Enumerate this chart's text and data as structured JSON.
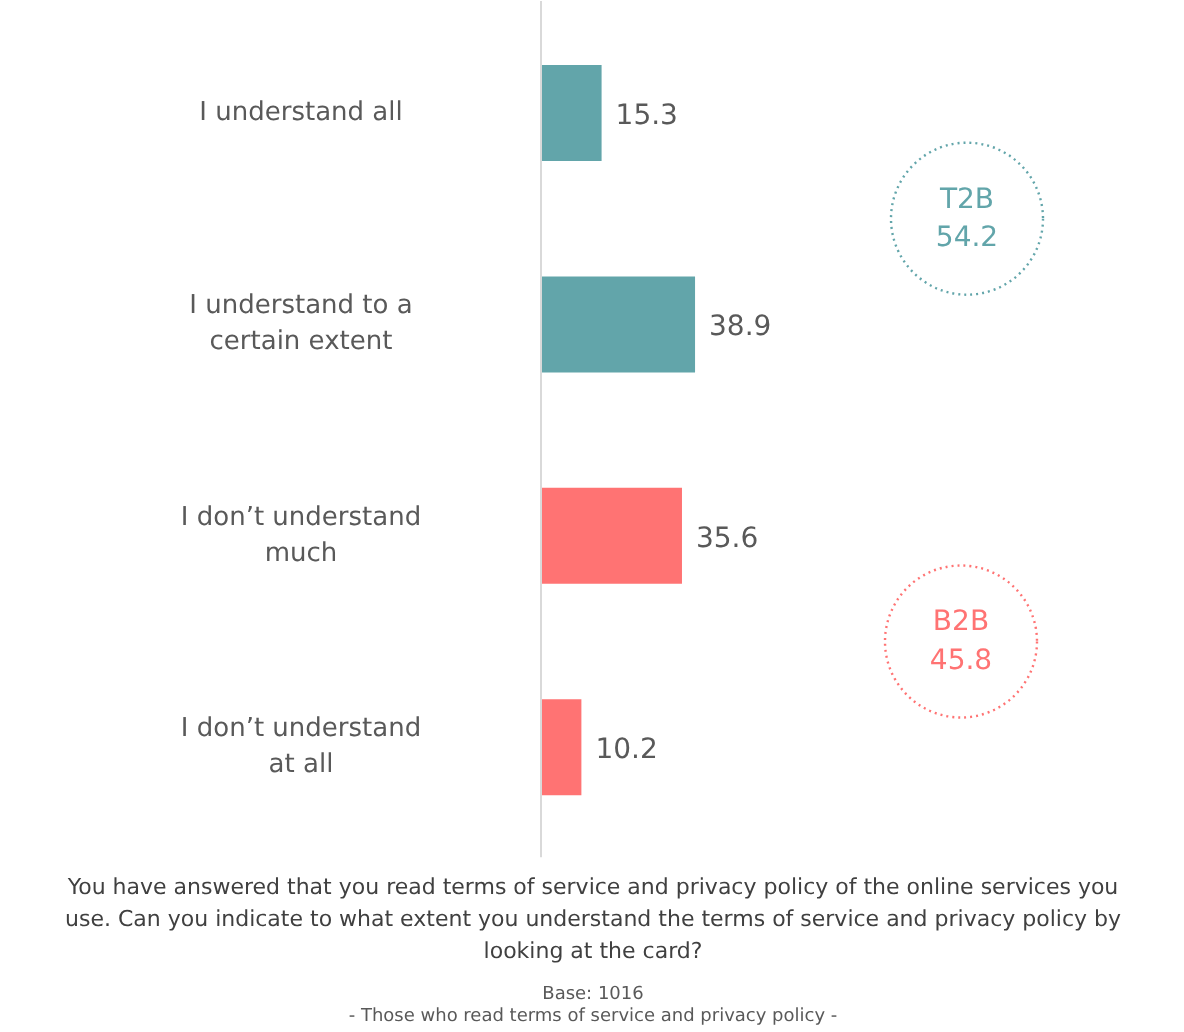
{
  "chart_data": {
    "type": "bar",
    "orientation": "horizontal",
    "title": "You have answered that you read terms of service and privacy policy of the online services you use. Can you indicate to what extent you understand the terms of service and privacy policy by looking at the card?",
    "categories": [
      "I understand all",
      "I understand to a certain extent",
      "I don’t understand much",
      "I don’t understand at all"
    ],
    "values": [
      15.3,
      38.9,
      35.6,
      10.2
    ],
    "colors": [
      "#62a5aa",
      "#62a5aa",
      "#ff7373",
      "#ff7373"
    ],
    "data_labels": true,
    "annotations": [
      "T2B\n54.2",
      "B2B\n45.8",
      "Base: 1016",
      "- Those who read terms of service and privacy policy -"
    ]
  }
}
